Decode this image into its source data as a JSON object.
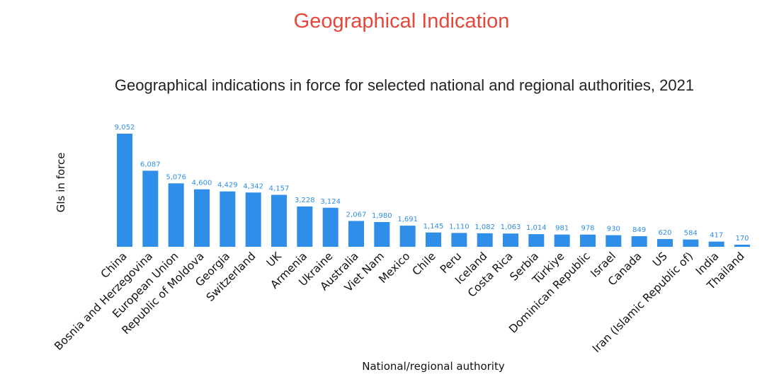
{
  "page": {
    "title": "Geographical Indication",
    "title_color": "#e8463a"
  },
  "chart_data": {
    "type": "bar",
    "title": "Geographical indications in force for selected national and regional authorities, 2021",
    "xlabel": "National/regional authority",
    "ylabel": "GIs in force",
    "categories": [
      "China",
      "Bosnia and Herzegovina",
      "European Union",
      "Republic of Moldova",
      "Georgia",
      "Switzerland",
      "UK",
      "Armenia",
      "Ukraine",
      "Australia",
      "Viet Nam",
      "Mexico",
      "Chile",
      "Peru",
      "Iceland",
      "Costa Rica",
      "Serbia",
      "Türkiye",
      "Dominican Republic",
      "Israel",
      "Canada",
      "US",
      "Iran (Islamic Republic of)",
      "India",
      "Thailand"
    ],
    "values": [
      9052,
      6087,
      5076,
      4600,
      4429,
      4342,
      4157,
      3228,
      3124,
      2067,
      1980,
      1691,
      1145,
      1110,
      1082,
      1063,
      1014,
      981,
      978,
      930,
      849,
      620,
      584,
      417,
      170
    ],
    "value_labels": [
      "9,052",
      "6,087",
      "5,076",
      "4,600",
      "4,429",
      "4,342",
      "4,157",
      "3,228",
      "3,124",
      "2,067",
      "1,980",
      "1,691",
      "1,145",
      "1,110",
      "1,082",
      "1,063",
      "1,014",
      "981",
      "978",
      "930",
      "849",
      "620",
      "584",
      "417",
      "170"
    ],
    "ylim": [
      0,
      9052
    ],
    "grid": false,
    "legend": "none",
    "bar_color": "#2f8ee8",
    "label_color": "#2f8ee8"
  }
}
